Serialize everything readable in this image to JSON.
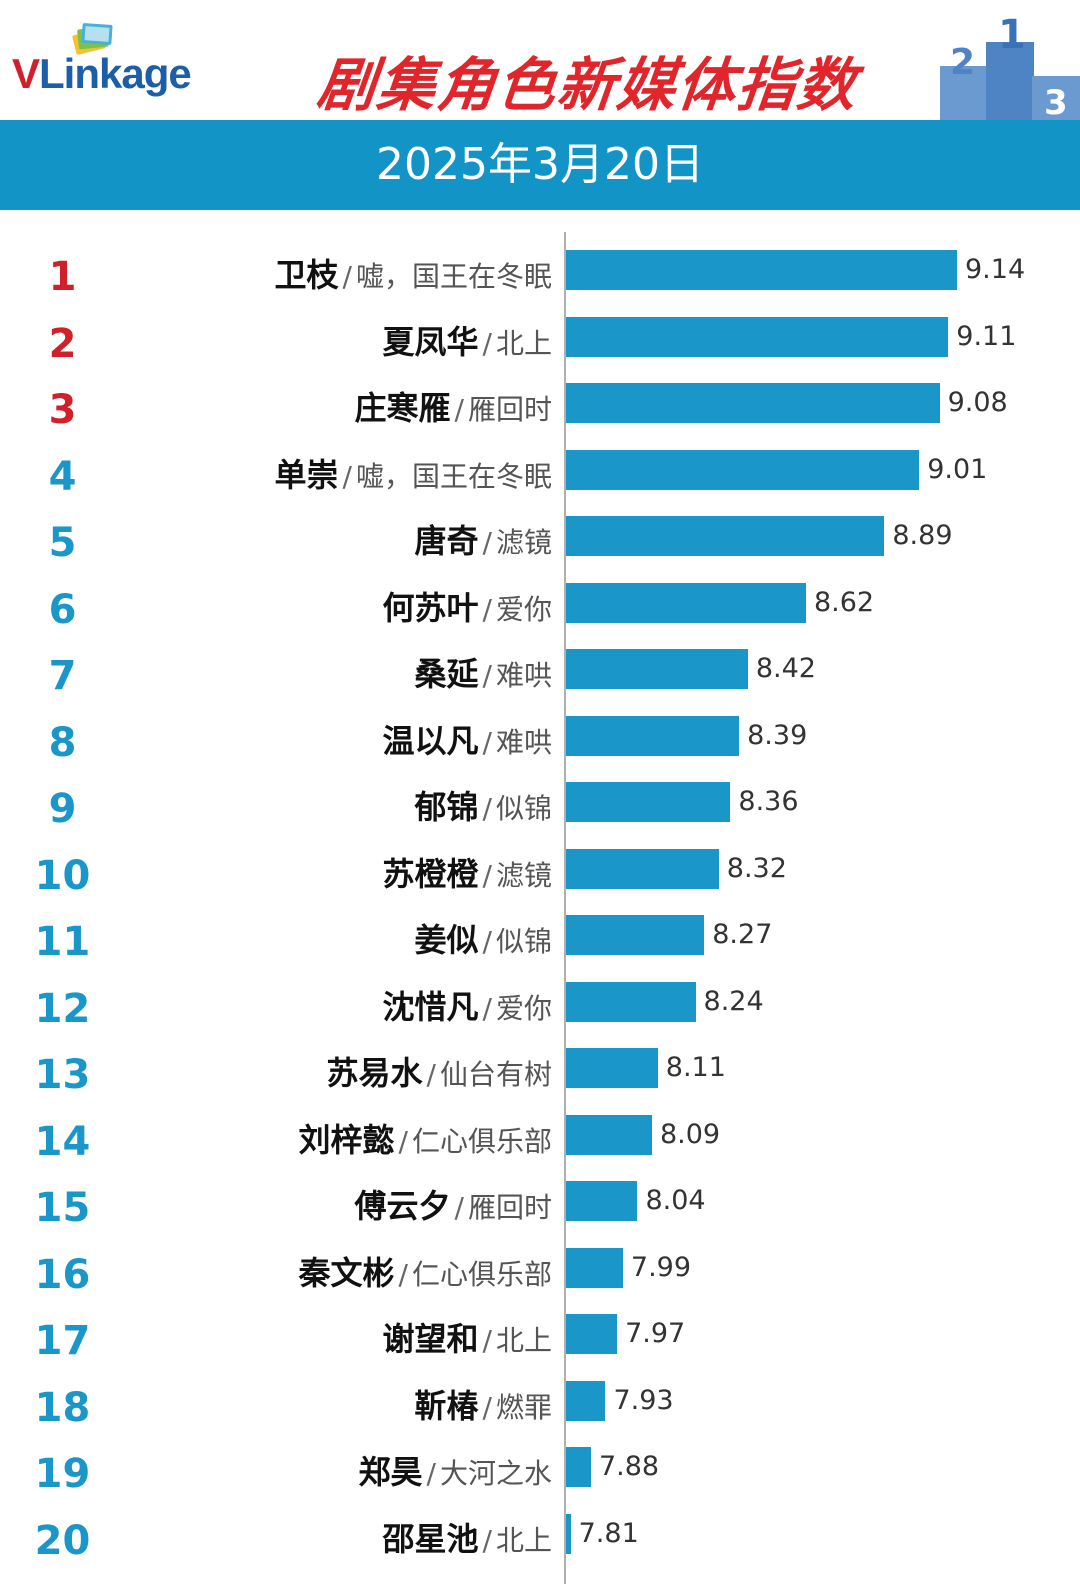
{
  "header": {
    "logo_text_v": "V",
    "logo_text_rest": "Linkage",
    "title": "剧集角色新媒体指数",
    "podium_numbers": [
      "2",
      "1",
      "3"
    ]
  },
  "date": "2025年3月20日",
  "colors": {
    "bar": "#1a96c8",
    "band": "#1295c6",
    "title": "#e0262b",
    "rank_top3": "#d0202a",
    "rank_other": "#1a96c8"
  },
  "chart_data": {
    "type": "bar",
    "orientation": "horizontal",
    "title": "剧集角色新媒体指数",
    "subtitle": "2025年3月20日",
    "xlim": [
      0,
      10
    ],
    "rows": [
      {
        "rank": "1",
        "character": "卫枝",
        "drama": "嘘，国王在冬眠",
        "value": 9.14
      },
      {
        "rank": "2",
        "character": "夏凤华",
        "drama": "北上",
        "value": 9.11
      },
      {
        "rank": "3",
        "character": "庄寒雁",
        "drama": "雁回时",
        "value": 9.08
      },
      {
        "rank": "4",
        "character": "单崇",
        "drama": "嘘，国王在冬眠",
        "value": 9.01
      },
      {
        "rank": "5",
        "character": "唐奇",
        "drama": "滤镜",
        "value": 8.89
      },
      {
        "rank": "6",
        "character": "何苏叶",
        "drama": "爱你",
        "value": 8.62
      },
      {
        "rank": "7",
        "character": "桑延",
        "drama": "难哄",
        "value": 8.42
      },
      {
        "rank": "8",
        "character": "温以凡",
        "drama": "难哄",
        "value": 8.39
      },
      {
        "rank": "9",
        "character": "郁锦",
        "drama": "似锦",
        "value": 8.36
      },
      {
        "rank": "10",
        "character": "苏橙橙",
        "drama": "滤镜",
        "value": 8.32
      },
      {
        "rank": "11",
        "character": "姜似",
        "drama": "似锦",
        "value": 8.27
      },
      {
        "rank": "12",
        "character": "沈惜凡",
        "drama": "爱你",
        "value": 8.24
      },
      {
        "rank": "13",
        "character": "苏易水",
        "drama": "仙台有树",
        "value": 8.11
      },
      {
        "rank": "14",
        "character": "刘梓懿",
        "drama": "仁心俱乐部",
        "value": 8.09
      },
      {
        "rank": "15",
        "character": "傅云夕",
        "drama": "雁回时",
        "value": 8.04
      },
      {
        "rank": "16",
        "character": "秦文彬",
        "drama": "仁心俱乐部",
        "value": 7.99
      },
      {
        "rank": "17",
        "character": "谢望和",
        "drama": "北上",
        "value": 7.97
      },
      {
        "rank": "18",
        "character": "靳椿",
        "drama": "燃罪",
        "value": 7.93
      },
      {
        "rank": "19",
        "character": "郑昊",
        "drama": "大河之水",
        "value": 7.88
      },
      {
        "rank": "20",
        "character": "邵星池",
        "drama": "北上",
        "value": 7.81
      }
    ]
  }
}
